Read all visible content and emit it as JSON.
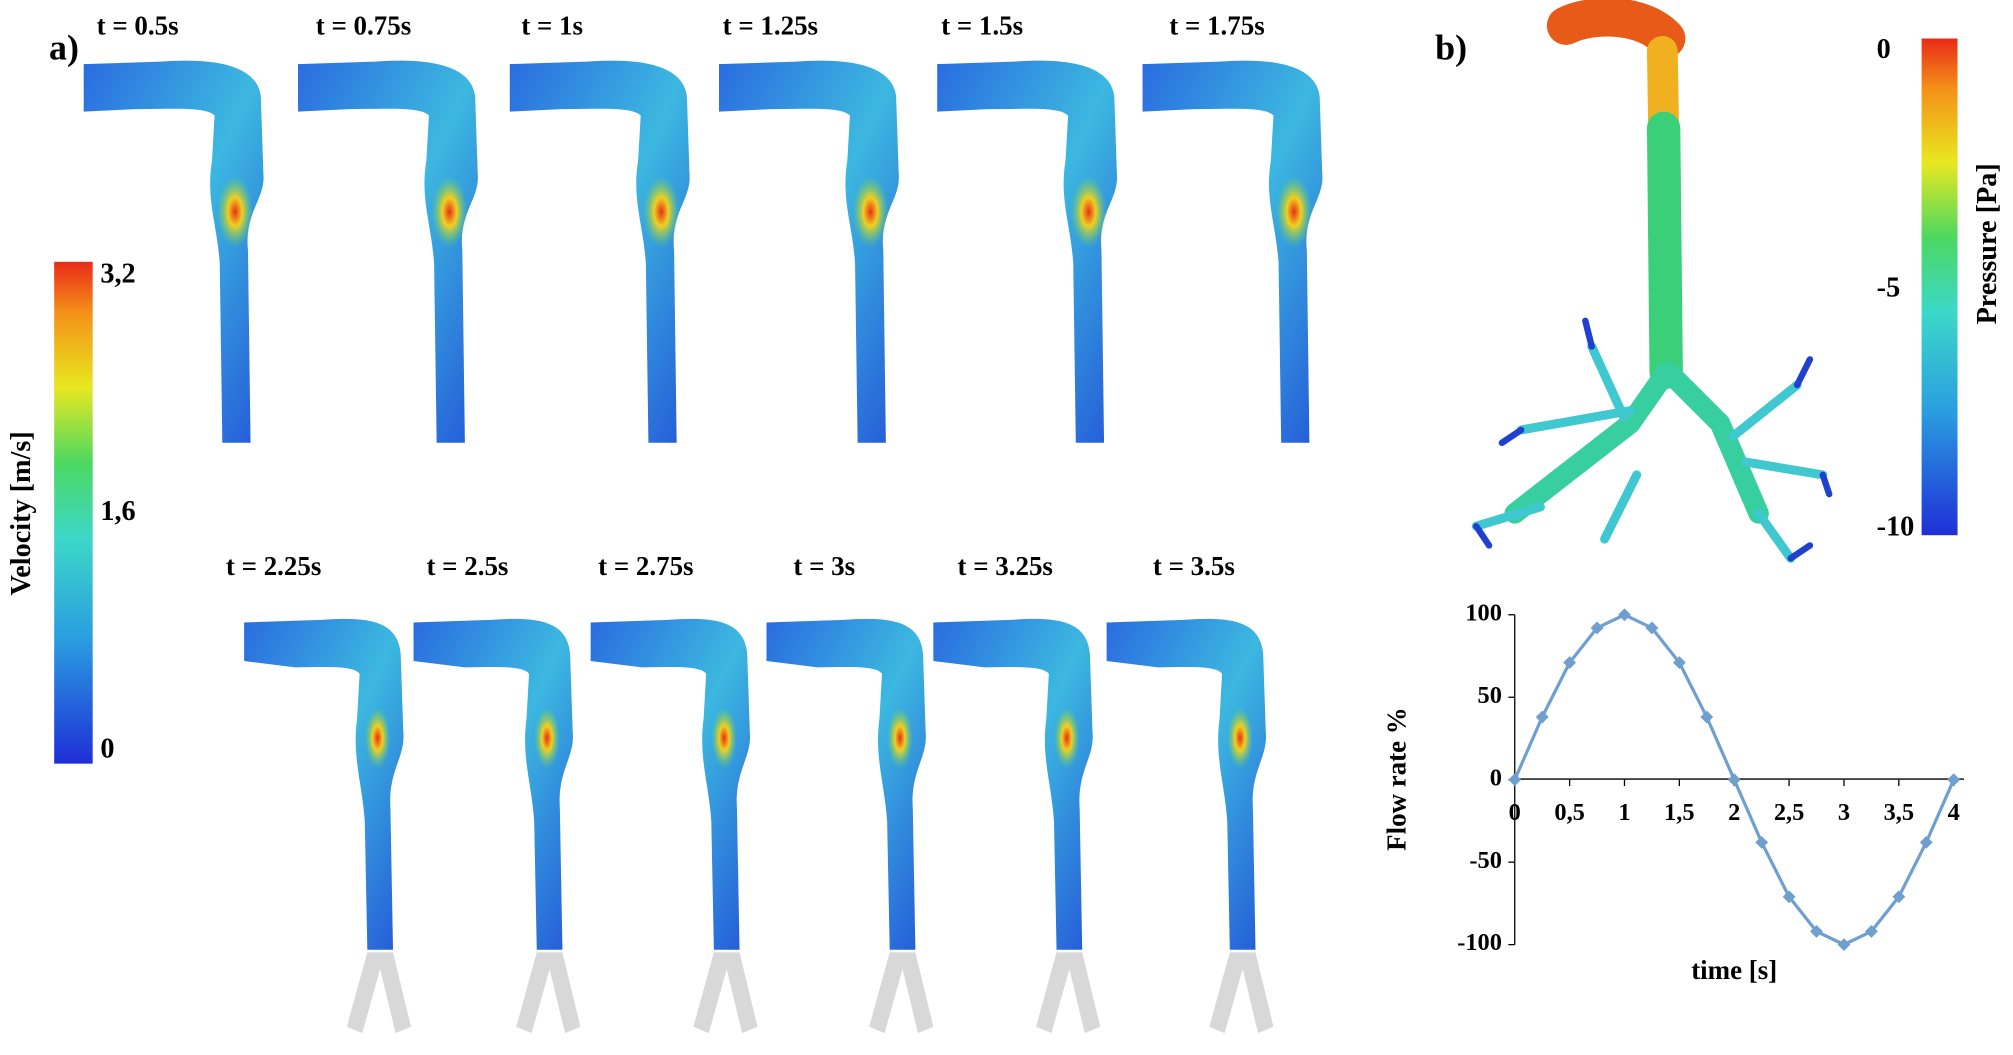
{
  "panel_a": {
    "label": "a)",
    "times_row1": [
      "t = 0.5s",
      "t = 0.75s",
      "t = 1s",
      "t = 1.25s",
      "t = 1.5s",
      "t = 1.75s"
    ],
    "times_row2": [
      "t = 2.25s",
      "t = 2.5s",
      "t = 2.75s",
      "t = 3s",
      "t = 3.25s",
      "t = 3.5s"
    ],
    "colorbar": {
      "title": "Velocity [m/s]",
      "lim": [
        0,
        3.2
      ],
      "ticks": [
        0,
        {
          "value": 1.6,
          "label": "1,6"
        },
        {
          "value": 3.2,
          "label": "3,2"
        }
      ]
    }
  },
  "panel_b": {
    "label": "b)",
    "colorbar": {
      "title": "Pressure [Pa]",
      "lim": [
        -10,
        0
      ],
      "ticks": [
        0,
        -5,
        -10
      ]
    }
  },
  "chart_data": {
    "type": "line",
    "xlabel": "time [s]",
    "ylabel": "Flow rate %",
    "x": [
      0,
      0.25,
      0.5,
      0.75,
      1,
      1.25,
      1.5,
      1.75,
      2,
      2.25,
      2.5,
      2.75,
      3,
      3.25,
      3.5,
      3.75,
      4
    ],
    "values": [
      0,
      38,
      71,
      92,
      100,
      92,
      71,
      38,
      0,
      -38,
      -71,
      -92,
      -100,
      -92,
      -71,
      -38,
      0
    ],
    "color": "#6f9fcf",
    "xlim": [
      0,
      4
    ],
    "ylim": [
      -100,
      100
    ],
    "xticks": [
      0,
      {
        "value": 0.5,
        "label": "0,5"
      },
      1,
      {
        "value": 1.5,
        "label": "1,5"
      },
      2,
      {
        "value": 2.5,
        "label": "2,5"
      },
      3,
      {
        "value": 3.5,
        "label": "3,5"
      },
      4
    ],
    "yticks": [
      -100,
      -50,
      0,
      50,
      100
    ]
  }
}
